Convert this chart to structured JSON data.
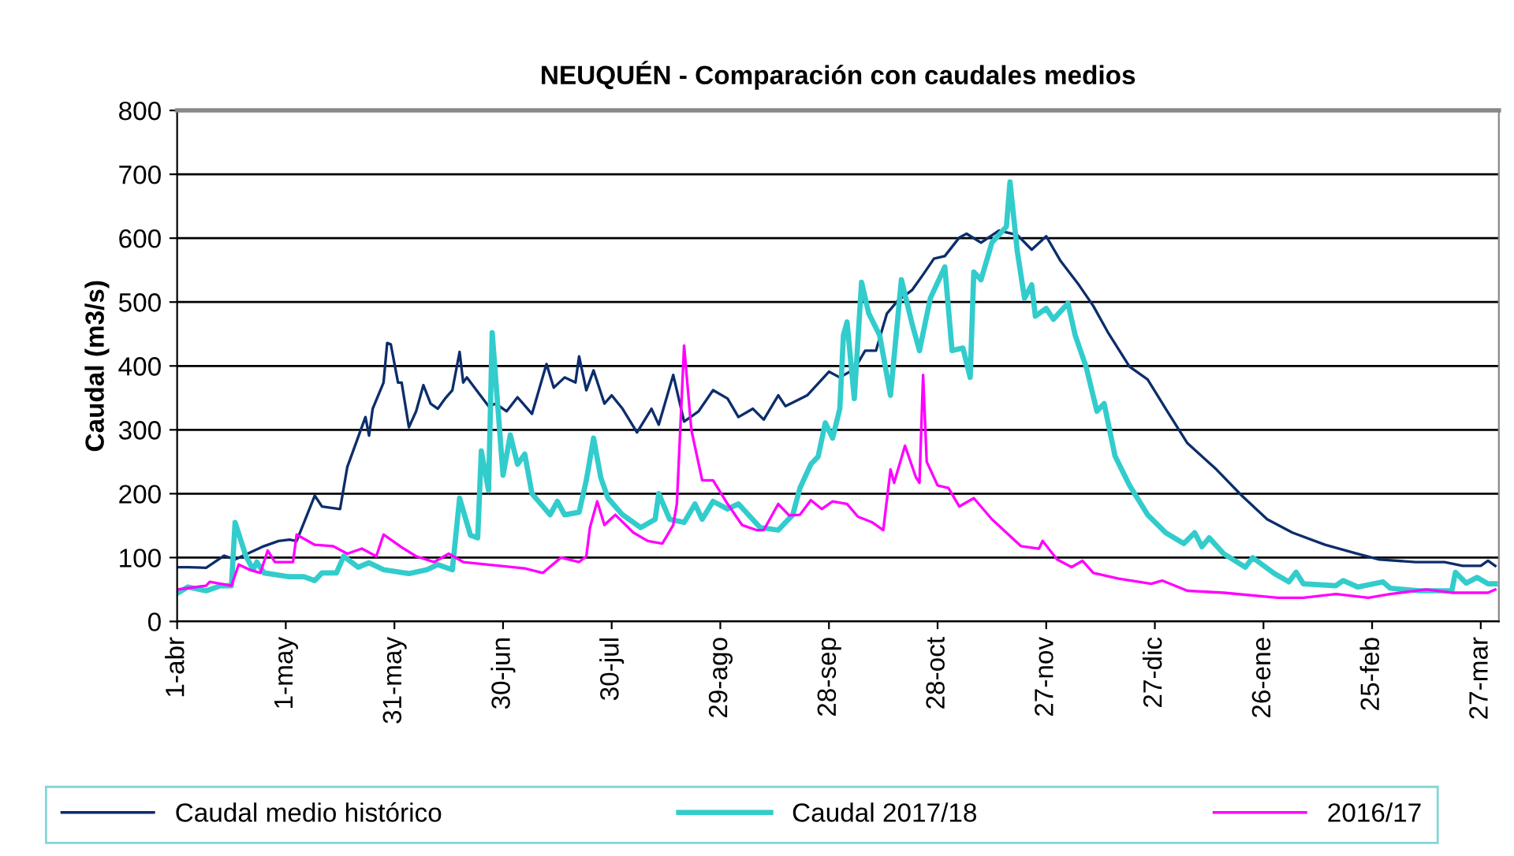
{
  "chart_data": {
    "type": "line",
    "title": "NEUQUÉN - Comparación con caudales medios",
    "ylabel": "Caudal (m3/s)",
    "xlim": [
      "2017-04-01",
      "2018-04-01"
    ],
    "ylim": [
      0,
      800
    ],
    "yticks": [
      0,
      100,
      200,
      300,
      400,
      500,
      600,
      700,
      800
    ],
    "xticks": [
      {
        "value": "2017-04-01",
        "label": "1-abr"
      },
      {
        "value": "2017-05-01",
        "label": "1-may"
      },
      {
        "value": "2017-05-31",
        "label": "31-may"
      },
      {
        "value": "2017-06-30",
        "label": "30-jun"
      },
      {
        "value": "2017-07-30",
        "label": "30-jul"
      },
      {
        "value": "2017-08-29",
        "label": "29-ago"
      },
      {
        "value": "2017-09-28",
        "label": "28-sep"
      },
      {
        "value": "2017-10-28",
        "label": "28-oct"
      },
      {
        "value": "2017-11-27",
        "label": "27-nov"
      },
      {
        "value": "2017-12-27",
        "label": "27-dic"
      },
      {
        "value": "2018-01-26",
        "label": "26-ene"
      },
      {
        "value": "2018-02-25",
        "label": "25-feb"
      },
      {
        "value": "2018-03-27",
        "label": "27-mar"
      }
    ],
    "grid": "y",
    "legend": "bottom",
    "marker": "none",
    "line_style": "solid",
    "series": [
      {
        "name": "Caudal medio histórico",
        "color": "#0d2d6b",
        "x": [
          "2017-04-01",
          "2017-04-04",
          "2017-04-09",
          "2017-04-14",
          "2017-04-17",
          "2017-04-25",
          "2017-04-29",
          "2017-05-02",
          "2017-05-04",
          "2017-05-09",
          "2017-05-11",
          "2017-05-16",
          "2017-05-18",
          "2017-05-23",
          "2017-05-24",
          "2017-05-25",
          "2017-05-28",
          "2017-05-29",
          "2017-05-30",
          "2017-06-01",
          "2017-06-02",
          "2017-06-04",
          "2017-06-06",
          "2017-06-08",
          "2017-06-10",
          "2017-06-12",
          "2017-06-14",
          "2017-06-16",
          "2017-06-18",
          "2017-06-19",
          "2017-06-20",
          "2017-06-26",
          "2017-06-28",
          "2017-07-01",
          "2017-07-04",
          "2017-07-08",
          "2017-07-12",
          "2017-07-14",
          "2017-07-17",
          "2017-07-20",
          "2017-07-21",
          "2017-07-23",
          "2017-07-25",
          "2017-07-28",
          "2017-07-30",
          "2017-08-02",
          "2017-08-06",
          "2017-08-10",
          "2017-08-12",
          "2017-08-16",
          "2017-08-19",
          "2017-08-23",
          "2017-08-27",
          "2017-08-31",
          "2017-09-03",
          "2017-09-07",
          "2017-09-10",
          "2017-09-14",
          "2017-09-16",
          "2017-09-22",
          "2017-09-28",
          "2017-10-01",
          "2017-10-05",
          "2017-10-08",
          "2017-10-11",
          "2017-10-14",
          "2017-10-17",
          "2017-10-21",
          "2017-10-24",
          "2017-10-27",
          "2017-10-30",
          "2017-11-03",
          "2017-11-05",
          "2017-11-09",
          "2017-11-14",
          "2017-11-19",
          "2017-11-23",
          "2017-11-27",
          "2017-12-01",
          "2017-12-06",
          "2017-12-10",
          "2017-12-14",
          "2017-12-20",
          "2017-12-25",
          "2017-12-30",
          "2018-01-05",
          "2018-01-13",
          "2018-01-20",
          "2018-01-27",
          "2018-02-03",
          "2018-02-12",
          "2018-02-21",
          "2018-02-27",
          "2018-03-09",
          "2018-03-17",
          "2018-03-22",
          "2018-03-27",
          "2018-03-29",
          "2018-03-31"
        ],
        "values": [
          85,
          85,
          84,
          103,
          97,
          118,
          126,
          128,
          126,
          197,
          180,
          176,
          242,
          320,
          291,
          333,
          374,
          436,
          434,
          374,
          374,
          304,
          329,
          370,
          341,
          333,
          349,
          362,
          422,
          374,
          382,
          337,
          341,
          329,
          351,
          325,
          403,
          366,
          382,
          374,
          415,
          362,
          393,
          341,
          354,
          333,
          296,
          333,
          308,
          386,
          313,
          329,
          362,
          349,
          320,
          333,
          316,
          354,
          337,
          354,
          391,
          382,
          395,
          424,
          424,
          482,
          502,
          519,
          543,
          568,
          572,
          601,
          607,
          593,
          612,
          605,
          582,
          603,
          564,
          527,
          494,
          453,
          399,
          379,
          333,
          279,
          238,
          197,
          160,
          139,
          120,
          106,
          97,
          93,
          93,
          87,
          87,
          95,
          87
        ]
      },
      {
        "name": "Caudal 2017/18",
        "color": "#33cccc",
        "x": [
          "2017-04-01",
          "2017-04-04",
          "2017-04-09",
          "2017-04-13",
          "2017-04-16",
          "2017-04-17",
          "2017-04-20",
          "2017-04-22",
          "2017-04-23",
          "2017-04-25",
          "2017-05-02",
          "2017-05-06",
          "2017-05-09",
          "2017-05-11",
          "2017-05-15",
          "2017-05-17",
          "2017-05-21",
          "2017-05-24",
          "2017-05-28",
          "2017-06-04",
          "2017-06-09",
          "2017-06-12",
          "2017-06-16",
          "2017-06-18",
          "2017-06-21",
          "2017-06-23",
          "2017-06-24",
          "2017-06-26",
          "2017-06-27",
          "2017-06-30",
          "2017-07-02",
          "2017-07-04",
          "2017-07-06",
          "2017-07-08",
          "2017-07-13",
          "2017-07-15",
          "2017-07-17",
          "2017-07-21",
          "2017-07-23",
          "2017-07-25",
          "2017-07-27",
          "2017-07-29",
          "2017-08-02",
          "2017-08-07",
          "2017-08-11",
          "2017-08-12",
          "2017-08-15",
          "2017-08-19",
          "2017-08-22",
          "2017-08-24",
          "2017-08-27",
          "2017-08-31",
          "2017-09-03",
          "2017-09-09",
          "2017-09-14",
          "2017-09-18",
          "2017-09-20",
          "2017-09-23",
          "2017-09-25",
          "2017-09-27",
          "2017-09-29",
          "2017-10-01",
          "2017-10-02",
          "2017-10-03",
          "2017-10-05",
          "2017-10-07",
          "2017-10-09",
          "2017-10-12",
          "2017-10-15",
          "2017-10-18",
          "2017-10-21",
          "2017-10-23",
          "2017-10-26",
          "2017-10-30",
          "2017-11-01",
          "2017-11-04",
          "2017-11-06",
          "2017-11-07",
          "2017-11-09",
          "2017-11-12",
          "2017-11-16",
          "2017-11-17",
          "2017-11-19",
          "2017-11-21",
          "2017-11-23",
          "2017-11-24",
          "2017-11-27",
          "2017-11-29",
          "2017-12-03",
          "2017-12-05",
          "2017-12-08",
          "2017-12-11",
          "2017-12-13",
          "2017-12-16",
          "2017-12-20",
          "2017-12-25",
          "2017-12-30",
          "2018-01-04",
          "2018-01-07",
          "2018-01-09",
          "2018-01-11",
          "2018-01-15",
          "2018-01-21",
          "2018-01-23",
          "2018-01-29",
          "2018-02-02",
          "2018-02-04",
          "2018-02-06",
          "2018-02-15",
          "2018-02-17",
          "2018-02-21",
          "2018-02-28",
          "2018-03-02",
          "2018-03-10",
          "2018-03-19",
          "2018-03-20",
          "2018-03-23",
          "2018-03-26",
          "2018-03-29",
          "2018-03-31"
        ],
        "values": [
          44,
          54,
          48,
          56,
          56,
          155,
          102,
          81,
          93,
          76,
          70,
          70,
          64,
          76,
          76,
          102,
          85,
          92,
          81,
          75,
          81,
          89,
          81,
          193,
          135,
          131,
          267,
          205,
          452,
          229,
          292,
          246,
          262,
          200,
          167,
          188,
          167,
          171,
          221,
          287,
          225,
          193,
          167,
          147,
          160,
          200,
          160,
          155,
          184,
          160,
          188,
          176,
          184,
          147,
          143,
          167,
          209,
          246,
          258,
          311,
          287,
          333,
          448,
          469,
          349,
          531,
          482,
          448,
          354,
          535,
          465,
          424,
          506,
          555,
          424,
          428,
          382,
          547,
          535,
          593,
          618,
          688,
          580,
          506,
          527,
          478,
          490,
          473,
          498,
          448,
          399,
          329,
          341,
          259,
          213,
          167,
          139,
          122,
          139,
          117,
          131,
          106,
          85,
          100,
          75,
          62,
          77,
          59,
          56,
          64,
          54,
          62,
          52,
          48,
          48,
          77,
          60,
          69,
          59,
          59
        ]
      },
      {
        "name": "2016/17",
        "color": "#ff00ff",
        "x": [
          "2017-04-01",
          "2017-04-09",
          "2017-04-10",
          "2017-04-16",
          "2017-04-18",
          "2017-04-21",
          "2017-04-24",
          "2017-04-26",
          "2017-04-28",
          "2017-05-03",
          "2017-05-04",
          "2017-05-09",
          "2017-05-14",
          "2017-05-18",
          "2017-05-22",
          "2017-05-26",
          "2017-05-28",
          "2017-06-02",
          "2017-06-06",
          "2017-06-11",
          "2017-06-15",
          "2017-06-19",
          "2017-07-06",
          "2017-07-11",
          "2017-07-16",
          "2017-07-21",
          "2017-07-23",
          "2017-07-24",
          "2017-07-26",
          "2017-07-28",
          "2017-07-31",
          "2017-08-05",
          "2017-08-09",
          "2017-08-13",
          "2017-08-16",
          "2017-08-17",
          "2017-08-19",
          "2017-08-21",
          "2017-08-24",
          "2017-08-27",
          "2017-08-31",
          "2017-09-04",
          "2017-09-08",
          "2017-09-10",
          "2017-09-14",
          "2017-09-17",
          "2017-09-20",
          "2017-09-23",
          "2017-09-26",
          "2017-09-29",
          "2017-10-03",
          "2017-10-06",
          "2017-10-10",
          "2017-10-13",
          "2017-10-15",
          "2017-10-16",
          "2017-10-19",
          "2017-10-22",
          "2017-10-23",
          "2017-10-24",
          "2017-10-25",
          "2017-10-28",
          "2017-10-31",
          "2017-11-03",
          "2017-11-07",
          "2017-11-12",
          "2017-11-16",
          "2017-11-20",
          "2017-11-25",
          "2017-11-26",
          "2017-11-30",
          "2017-12-04",
          "2017-12-07",
          "2017-12-10",
          "2017-12-17",
          "2017-12-26",
          "2017-12-29",
          "2018-01-05",
          "2018-01-15",
          "2018-01-30",
          "2018-02-06",
          "2018-02-15",
          "2018-02-24",
          "2018-03-02",
          "2018-03-12",
          "2018-03-19",
          "2018-03-29",
          "2018-03-31"
        ],
        "values": [
          50,
          56,
          62,
          56,
          89,
          81,
          76,
          111,
          93,
          93,
          136,
          120,
          118,
          106,
          114,
          102,
          136,
          116,
          102,
          93,
          106,
          93,
          83,
          76,
          100,
          93,
          102,
          147,
          188,
          151,
          167,
          139,
          126,
          122,
          151,
          184,
          432,
          300,
          221,
          221,
          184,
          151,
          143,
          143,
          184,
          166,
          167,
          190,
          176,
          188,
          184,
          164,
          155,
          143,
          238,
          217,
          275,
          226,
          217,
          386,
          250,
          213,
          209,
          180,
          193,
          160,
          139,
          118,
          114,
          126,
          97,
          85,
          95,
          76,
          67,
          59,
          64,
          48,
          45,
          37,
          37,
          43,
          37,
          43,
          50,
          45,
          45,
          50
        ]
      }
    ]
  }
}
